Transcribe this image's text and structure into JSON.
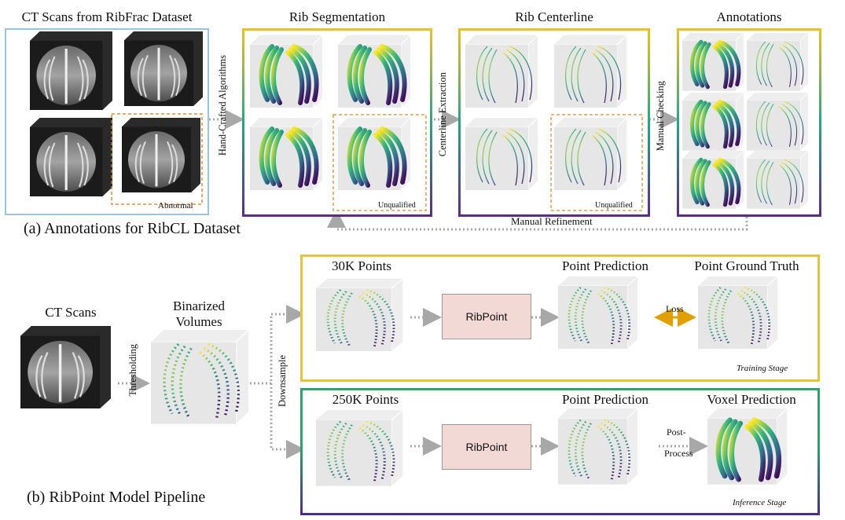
{
  "part_a": {
    "caption": "(a) Annotations for RibCL Dataset",
    "ct_title": "CT Scans from RibFrac Dataset",
    "abnormal": "Abnormal",
    "arrow_hand_crafted": "Hand-Crafted Algorithms",
    "seg_title": "Rib Segmentation",
    "seg_unqualified": "Unqualified",
    "arrow_centerline": "Centerline Extraction",
    "cl_title": "Rib Centerline",
    "cl_unqualified": "Unqualified",
    "arrow_manual_checking": "Manual Checking",
    "ann_title": "Annotations",
    "manual_refinement": "Manual Refinement"
  },
  "part_b": {
    "caption": "(b) RibPoint Model Pipeline",
    "ct_title": "CT Scans",
    "thresholding": "Thresholding",
    "binarized_line1": "Binarized",
    "binarized_line2": "Volumes",
    "downsample": "Downsample",
    "train": {
      "points_title": "30K Points",
      "model": "RibPoint",
      "pred_title": "Point Prediction",
      "loss": "Loss",
      "gt_title": "Point Ground Truth",
      "stage": "Training Stage"
    },
    "infer": {
      "points_title": "250K Points",
      "model": "RibPoint",
      "pred_title": "Point Prediction",
      "post_line1": "Post-",
      "post_line2": "Process",
      "voxel_title": "Voxel Prediction",
      "stage": "Inference Stage"
    }
  },
  "colors": {
    "ct_panel_border": "#9cc3dd",
    "gradient_top": "#f0c020",
    "gradient_mid": "#22a884",
    "gradient_bottom": "#5b2a8f",
    "train_border": "#e7c435",
    "infer_border": "#2aa56c",
    "ribpoint_fill": "#f3d9d6",
    "dashed_highlight": "#e08a2c",
    "loss_arrow": "#e0a000"
  }
}
